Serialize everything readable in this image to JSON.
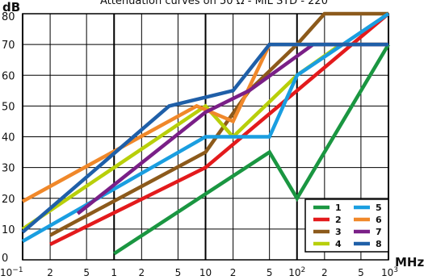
{
  "chart_data": {
    "type": "line",
    "title": "Attenuation curves on 50 Ω - MIL STD - 220",
    "ylabel": "dB",
    "xlabel": "MHz",
    "x_scale": "log",
    "xlim": [
      0.1,
      1000
    ],
    "ylim": [
      0,
      80
    ],
    "y_ticks": [
      "0",
      "10",
      "20",
      "30",
      "40",
      "50",
      "60",
      "70",
      "80"
    ],
    "x_ticks": [
      {
        "value": 0.1,
        "label": "10",
        "sup": "−1"
      },
      {
        "value": 0.2,
        "label": "2",
        "sup": ""
      },
      {
        "value": 0.5,
        "label": "5",
        "sup": ""
      },
      {
        "value": 1,
        "label": "1",
        "sup": ""
      },
      {
        "value": 2,
        "label": "2",
        "sup": ""
      },
      {
        "value": 5,
        "label": "5",
        "sup": ""
      },
      {
        "value": 10,
        "label": "10",
        "sup": ""
      },
      {
        "value": 20,
        "label": "2",
        "sup": ""
      },
      {
        "value": 50,
        "label": "5",
        "sup": ""
      },
      {
        "value": 100,
        "label": "10",
        "sup": "2"
      },
      {
        "value": 200,
        "label": "2",
        "sup": ""
      },
      {
        "value": 500,
        "label": "5",
        "sup": ""
      },
      {
        "value": 1000,
        "label": "10",
        "sup": "3"
      }
    ],
    "grid": true,
    "legend_position": "bottom-right",
    "series": [
      {
        "name": "1",
        "color": "#1a9641",
        "points": [
          [
            1,
            2
          ],
          [
            50,
            35
          ],
          [
            100,
            20
          ],
          [
            1000,
            70
          ]
        ]
      },
      {
        "name": "2",
        "color": "#e31a1c",
        "points": [
          [
            0.2,
            5
          ],
          [
            10,
            30
          ],
          [
            100,
            55
          ],
          [
            1000,
            80
          ]
        ]
      },
      {
        "name": "3",
        "color": "#8c5a1b",
        "points": [
          [
            0.2,
            8
          ],
          [
            10,
            35
          ],
          [
            30,
            55
          ],
          [
            100,
            70
          ],
          [
            200,
            80
          ],
          [
            1000,
            80
          ]
        ]
      },
      {
        "name": "4",
        "color": "#b8cf0a",
        "points": [
          [
            0.1,
            10
          ],
          [
            10,
            50
          ],
          [
            20,
            40
          ],
          [
            100,
            60
          ],
          [
            300,
            70
          ],
          [
            1000,
            70
          ]
        ]
      },
      {
        "name": "5",
        "color": "#1a9ee0",
        "points": [
          [
            0.1,
            6
          ],
          [
            10,
            40
          ],
          [
            50,
            40
          ],
          [
            100,
            60
          ],
          [
            1000,
            80
          ]
        ]
      },
      {
        "name": "6",
        "color": "#f0882a",
        "points": [
          [
            0.1,
            19
          ],
          [
            8,
            50
          ],
          [
            20,
            45
          ],
          [
            50,
            70
          ],
          [
            1000,
            70
          ]
        ]
      },
      {
        "name": "7",
        "color": "#7a1f87",
        "points": [
          [
            0.4,
            15
          ],
          [
            10,
            48
          ],
          [
            30,
            55
          ],
          [
            150,
            70
          ],
          [
            1000,
            70
          ]
        ]
      },
      {
        "name": "8",
        "color": "#1f5fa8",
        "points": [
          [
            0.1,
            9
          ],
          [
            4,
            50
          ],
          [
            20,
            55
          ],
          [
            50,
            70
          ],
          [
            200,
            70
          ],
          [
            1000,
            70
          ]
        ]
      }
    ]
  }
}
